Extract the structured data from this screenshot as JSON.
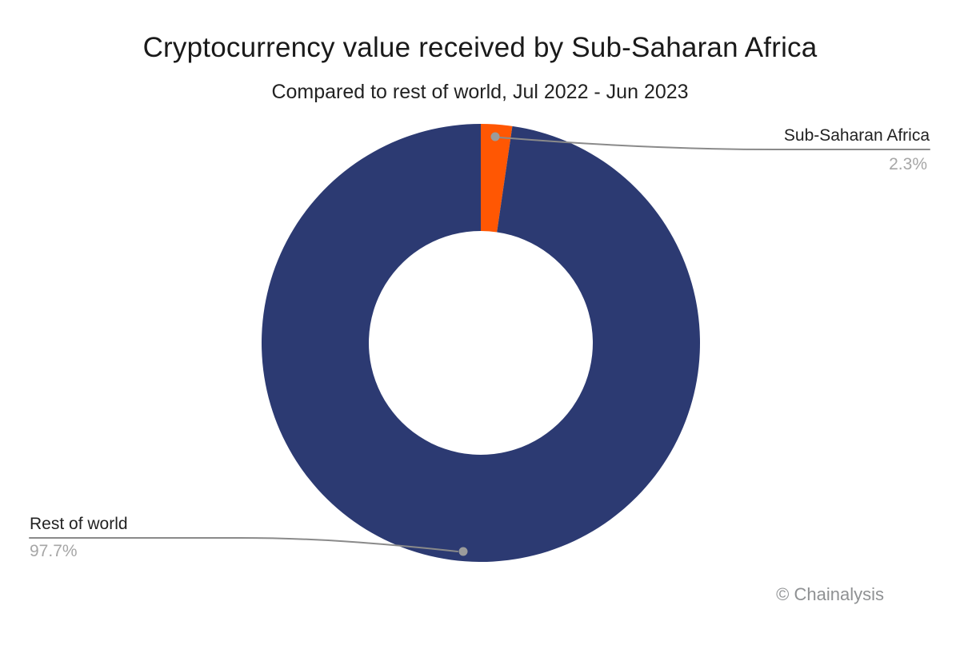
{
  "chart_data": {
    "type": "pie",
    "subtype": "donut",
    "title": "Cryptocurrency value received by Sub-Saharan Africa",
    "subtitle": "Compared to rest of world, Jul 2022 - Jun 2023",
    "slices": [
      {
        "label": "Sub-Saharan Africa",
        "value": 2.3,
        "display_value": "2.3%",
        "color": "#ff5703"
      },
      {
        "label": "Rest of world",
        "value": 97.7,
        "display_value": "97.7%",
        "color": "#2c3a72"
      }
    ],
    "start_position": "top",
    "direction": "clockwise",
    "inner_radius_ratio": 0.51,
    "legend_position": "callout-labels",
    "background": "#ffffff"
  },
  "callouts": {
    "line_color": "#8a8a8a",
    "dot_color": "#9b9b9b",
    "label_color": "#222222",
    "value_color": "#a6a6a6"
  },
  "footer": {
    "attribution": "© Chainalysis",
    "color": "#8f9193"
  }
}
